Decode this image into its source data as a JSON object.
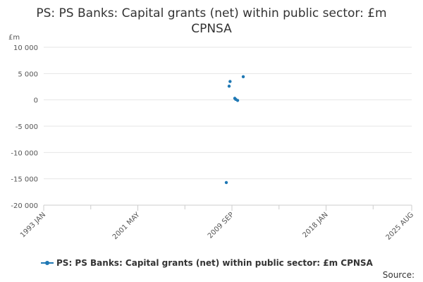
{
  "chart_data": {
    "type": "scatter",
    "title_line1": "PS: PS Banks: Capital grants (net) within public sector: £m",
    "title_line2": "CPNSA",
    "ylabel": "£m",
    "ylim": [
      -20000,
      10000
    ],
    "yticks": [
      10000,
      5000,
      0,
      -5000,
      -10000,
      -15000,
      -20000
    ],
    "ytick_labels": [
      "10 000",
      "5 000",
      "0",
      "-5 000",
      "-10 000",
      "-15 000",
      "-20 000"
    ],
    "xlim": [
      "1993-01",
      "2025-08"
    ],
    "xticks": [
      "1993-01",
      "2001-05",
      "2009-09",
      "2018-01",
      "2025-08"
    ],
    "xtick_labels": [
      "1993 JAN",
      "2001 MAY",
      "2009 SEP",
      "2018 JAN",
      "2025 AUG"
    ],
    "series": [
      {
        "name": "PS: PS Banks: Capital grants (net) within public sector: £m CPNSA",
        "color": "#1f78b4",
        "points": [
          {
            "x": "2009-03",
            "y": -15700
          },
          {
            "x": "2009-06",
            "y": 2600
          },
          {
            "x": "2009-07",
            "y": 3500
          },
          {
            "x": "2009-12",
            "y": 300
          },
          {
            "x": "2010-01",
            "y": 100
          },
          {
            "x": "2010-03",
            "y": -100
          },
          {
            "x": "2010-09",
            "y": 4400
          }
        ]
      }
    ],
    "legend": "bottom",
    "grid": true
  },
  "footer": {
    "source_label": "Source:"
  }
}
